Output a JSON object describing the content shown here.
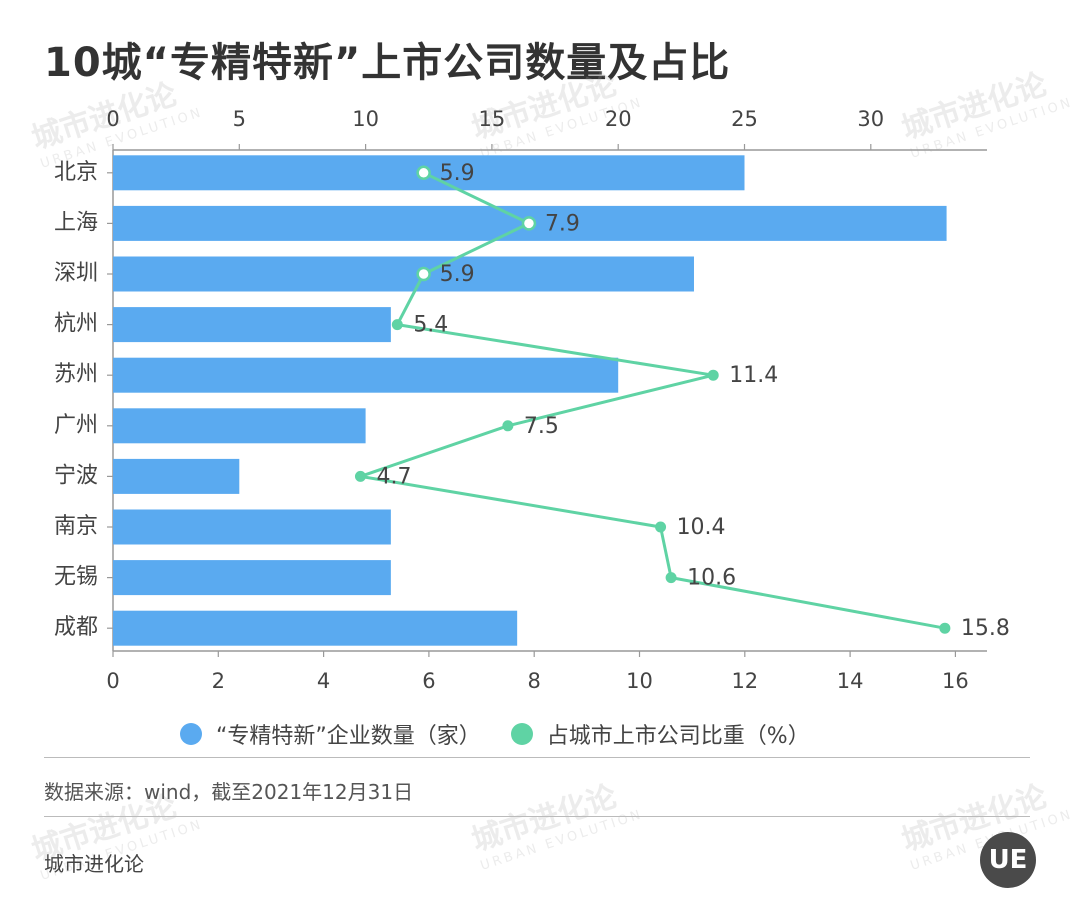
{
  "title": "10城“专精特新”上市公司数量及占比",
  "legend": {
    "series1": "“专精特新”企业数量（家）",
    "series2": "占城市上市公司比重（%）"
  },
  "source": "数据来源：wind，截至2021年12月31日",
  "brand": "城市进化论",
  "logo_text": "UE",
  "watermark": {
    "cn": "城市进化论",
    "en": "URBAN EVOLUTION"
  },
  "colors": {
    "bar": "#5aaaf0",
    "line": "#5fd3a4",
    "axis": "#999999",
    "text": "#444444"
  },
  "chart_data": {
    "type": "bar+line",
    "categories": [
      "北京",
      "上海",
      "深圳",
      "杭州",
      "苏州",
      "广州",
      "宁波",
      "南京",
      "无锡",
      "成都"
    ],
    "series": [
      {
        "name": "“专精特新”企业数量（家）",
        "type": "bar",
        "axis": "top",
        "values": [
          25,
          33,
          23,
          11,
          20,
          10,
          5,
          11,
          11,
          16
        ]
      },
      {
        "name": "占城市上市公司比重（%）",
        "type": "line",
        "axis": "bottom",
        "values": [
          5.9,
          7.9,
          5.9,
          5.4,
          11.4,
          7.5,
          4.7,
          10.4,
          10.6,
          15.8
        ]
      }
    ],
    "top_axis": {
      "min": 0,
      "max": 34.6,
      "ticks": [
        0,
        5,
        10,
        15,
        20,
        25,
        30
      ]
    },
    "bottom_axis": {
      "min": 0,
      "max": 16.6,
      "ticks": [
        0,
        2,
        4,
        6,
        8,
        10,
        12,
        14,
        16
      ]
    },
    "grid": false
  }
}
